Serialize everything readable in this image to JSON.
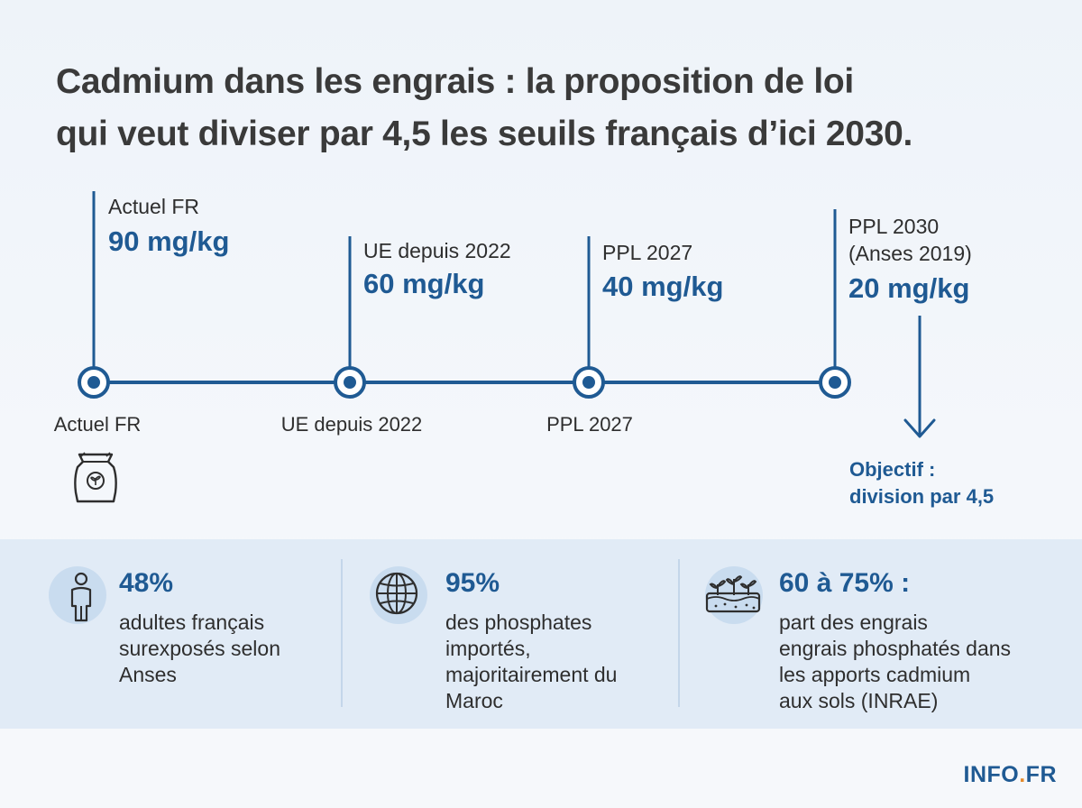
{
  "title": {
    "line1": "Cadmium dans les engrais : la proposition de loi",
    "line2": "qui veut diviser par 4,5 les seuils français d’ici 2030."
  },
  "timeline": {
    "points": [
      {
        "top_label": "Actuel FR",
        "value": "90 mg/kg",
        "axis_label": "Actuel FR"
      },
      {
        "top_label": "UE depuis 2022",
        "value": "60 mg/kg",
        "axis_label": "UE depuis 2022"
      },
      {
        "top_label": "PPL 2027",
        "value": "40 mg/kg",
        "axis_label": "PPL 2027"
      },
      {
        "top_label": "PPL 2030",
        "top_label_2": "(Anses 2019)",
        "value": "20 mg/kg"
      }
    ],
    "objectif": {
      "line1": "Objectif :",
      "line2": "division par 4,5"
    }
  },
  "stats": [
    {
      "icon": "person-icon",
      "value": "48%",
      "desc": [
        "adultes français",
        "surexposés selon",
        "Anses"
      ]
    },
    {
      "icon": "globe-icon",
      "value": "95%",
      "desc": [
        "des phosphates",
        "importés,",
        "majoritairement du",
        "Maroc"
      ]
    },
    {
      "icon": "soil-sprouts-icon",
      "value": "60 à 75% :",
      "desc": [
        "part des engrais",
        "engrais phosphatés dans",
        "les apports cadmium",
        "aux sols (INRAE)"
      ]
    }
  ],
  "brand": {
    "name": "INFO",
    "dot": ".",
    "tld": "FR"
  },
  "colors": {
    "accent": "#1f5a93",
    "brand_dot": "#e58b2c",
    "band": "#e1ebf6"
  }
}
